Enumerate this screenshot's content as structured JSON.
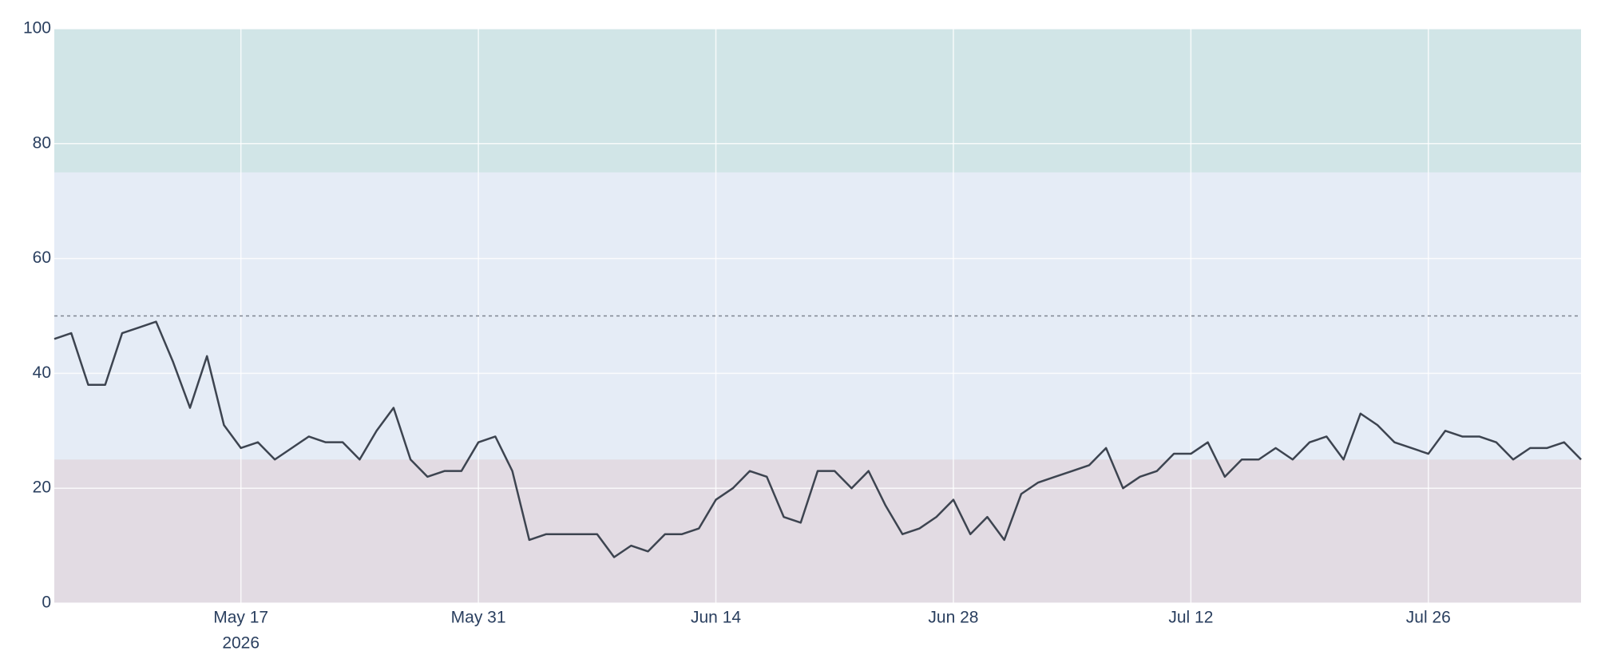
{
  "chart_data": {
    "type": "line",
    "x": [
      "2026-05-06",
      "2026-05-07",
      "2026-05-08",
      "2026-05-09",
      "2026-05-10",
      "2026-05-11",
      "2026-05-12",
      "2026-05-13",
      "2026-05-14",
      "2026-05-15",
      "2026-05-16",
      "2026-05-17",
      "2026-05-18",
      "2026-05-19",
      "2026-05-20",
      "2026-05-21",
      "2026-05-22",
      "2026-05-23",
      "2026-05-24",
      "2026-05-25",
      "2026-05-26",
      "2026-05-27",
      "2026-05-28",
      "2026-05-29",
      "2026-05-30",
      "2026-05-31",
      "2026-06-01",
      "2026-06-02",
      "2026-06-03",
      "2026-06-04",
      "2026-06-05",
      "2026-06-06",
      "2026-06-07",
      "2026-06-08",
      "2026-06-09",
      "2026-06-10",
      "2026-06-11",
      "2026-06-12",
      "2026-06-13",
      "2026-06-14",
      "2026-06-15",
      "2026-06-16",
      "2026-06-17",
      "2026-06-18",
      "2026-06-19",
      "2026-06-20",
      "2026-06-21",
      "2026-06-22",
      "2026-06-23",
      "2026-06-24",
      "2026-06-25",
      "2026-06-26",
      "2026-06-27",
      "2026-06-28",
      "2026-06-29",
      "2026-06-30",
      "2026-07-01",
      "2026-07-02",
      "2026-07-03",
      "2026-07-04",
      "2026-07-05",
      "2026-07-06",
      "2026-07-07",
      "2026-07-08",
      "2026-07-09",
      "2026-07-10",
      "2026-07-11",
      "2026-07-12",
      "2026-07-13",
      "2026-07-14",
      "2026-07-15",
      "2026-07-16",
      "2026-07-17",
      "2026-07-18",
      "2026-07-19",
      "2026-07-20",
      "2026-07-21",
      "2026-07-22",
      "2026-07-23",
      "2026-07-24",
      "2026-07-25",
      "2026-07-26",
      "2026-07-27",
      "2026-07-28",
      "2026-07-29",
      "2026-07-30",
      "2026-07-31",
      "2026-08-01",
      "2026-08-02",
      "2026-08-03",
      "2026-08-04"
    ],
    "series": [
      {
        "color": "#3d4450",
        "values": [
          46,
          47,
          38,
          38,
          47,
          48,
          49,
          42,
          34,
          43,
          31,
          27,
          28,
          25,
          27,
          29,
          28,
          28,
          25,
          30,
          34,
          25,
          22,
          23,
          23,
          28,
          29,
          23,
          11,
          12,
          12,
          12,
          12,
          8,
          10,
          9,
          12,
          12,
          13,
          18,
          20,
          23,
          22,
          15,
          14,
          23,
          23,
          20,
          23,
          17,
          12,
          13,
          15,
          18,
          12,
          15,
          11,
          19,
          21,
          22,
          23,
          24,
          27,
          20,
          22,
          23,
          26,
          26,
          28,
          22,
          25,
          25,
          27,
          25,
          28,
          29,
          25,
          33,
          31,
          28,
          27,
          26,
          30,
          29,
          29,
          28,
          25,
          27,
          27,
          28,
          25
        ]
      }
    ],
    "xlim": [
      "2026-05-06",
      "2026-08-04"
    ],
    "xticks": [
      {
        "value": "2026-05-17",
        "label": "May 17"
      },
      {
        "value": "2026-05-31",
        "label": "May 31"
      },
      {
        "value": "2026-06-14",
        "label": "Jun 14"
      },
      {
        "value": "2026-06-28",
        "label": "Jun 28"
      },
      {
        "value": "2026-07-12",
        "label": "Jul 12"
      },
      {
        "value": "2026-07-26",
        "label": "Jul 26"
      }
    ],
    "xtick_year": "2026",
    "ylim": [
      0,
      100
    ],
    "yticks": [
      0,
      20,
      40,
      60,
      80,
      100
    ],
    "grid": true,
    "background": "#e5ecf6",
    "bands": [
      {
        "from": 75,
        "to": 100,
        "color": "#d1e5e7"
      },
      {
        "from": 0,
        "to": 25,
        "color": "#e2dbe3"
      }
    ],
    "reference_line": 50
  }
}
